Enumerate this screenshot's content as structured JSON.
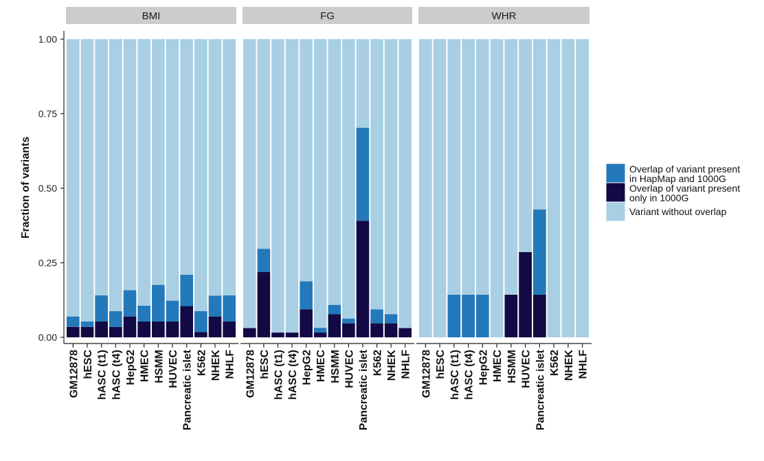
{
  "chart_data": {
    "type": "bar",
    "stacked": true,
    "ylabel": "Fraction of variants",
    "xlabel": "",
    "ylim": [
      0,
      1
    ],
    "yticks": [
      0.0,
      0.25,
      0.5,
      0.75,
      1.0
    ],
    "ytick_labels": [
      "0.00",
      "0.25",
      "0.50",
      "0.75",
      "1.00"
    ],
    "grid": false,
    "legend_position": "right",
    "categories": [
      "GM12878",
      "hESC",
      "hASC (t1)",
      "hASC (t4)",
      "HepG2",
      "HMEC",
      "HSMM",
      "HUVEC",
      "Pancreatic islet",
      "K562",
      "NHEK",
      "NHLF"
    ],
    "series_meta": [
      {
        "name": "Overlap of variant present in HapMap and 1000G",
        "color": "#2479bb"
      },
      {
        "name": "Overlap of variant present only in 1000G",
        "color": "#120a45"
      },
      {
        "name": "Variant without overlap",
        "color": "#a8cfe3"
      }
    ],
    "panels": [
      {
        "title": "BMI",
        "series": [
          {
            "name": "Overlap of variant present only in 1000G",
            "values": [
              0.035,
              0.035,
              0.053,
              0.035,
              0.07,
              0.053,
              0.053,
              0.053,
              0.105,
              0.018,
              0.07,
              0.053
            ]
          },
          {
            "name": "Overlap of variant present in HapMap and 1000G",
            "values": [
              0.035,
              0.018,
              0.088,
              0.053,
              0.088,
              0.053,
              0.123,
              0.07,
              0.105,
              0.07,
              0.07,
              0.088
            ]
          },
          {
            "name": "Variant without overlap",
            "values": [
              0.93,
              0.947,
              0.859,
              0.912,
              0.842,
              0.894,
              0.824,
              0.877,
              0.79,
              0.912,
              0.86,
              0.859
            ]
          }
        ]
      },
      {
        "title": "FG",
        "series": [
          {
            "name": "Overlap of variant present only in 1000G",
            "values": [
              0.031,
              0.219,
              0.016,
              0.016,
              0.094,
              0.016,
              0.078,
              0.047,
              0.391,
              0.047,
              0.047,
              0.031
            ]
          },
          {
            "name": "Overlap of variant present in HapMap and 1000G",
            "values": [
              0.0,
              0.078,
              0.0,
              0.0,
              0.094,
              0.016,
              0.031,
              0.016,
              0.312,
              0.047,
              0.031,
              0.0
            ]
          },
          {
            "name": "Variant without overlap",
            "values": [
              0.969,
              0.703,
              0.984,
              0.984,
              0.812,
              0.968,
              0.891,
              0.937,
              0.297,
              0.906,
              0.922,
              0.969
            ]
          }
        ]
      },
      {
        "title": "WHR",
        "series": [
          {
            "name": "Overlap of variant present only in 1000G",
            "values": [
              0.0,
              0.0,
              0.0,
              0.0,
              0.0,
              0.0,
              0.143,
              0.286,
              0.143,
              0.0,
              0.0,
              0.0
            ]
          },
          {
            "name": "Overlap of variant present in HapMap and 1000G",
            "values": [
              0.0,
              0.0,
              0.143,
              0.143,
              0.143,
              0.0,
              0.0,
              0.0,
              0.286,
              0.0,
              0.0,
              0.0
            ]
          },
          {
            "name": "Variant without overlap",
            "values": [
              1.0,
              1.0,
              0.857,
              0.857,
              0.857,
              1.0,
              0.857,
              0.714,
              0.571,
              1.0,
              1.0,
              1.0
            ]
          }
        ]
      }
    ],
    "legend": [
      {
        "label_line1": "Overlap of variant present",
        "label_line2": "in HapMap and 1000G",
        "color": "#2479bb"
      },
      {
        "label_line1": "Overlap of variant present",
        "label_line2": "only in 1000G",
        "color": "#120a45"
      },
      {
        "label_line1": "Variant without overlap",
        "label_line2": "",
        "color": "#a8cfe3"
      }
    ]
  }
}
